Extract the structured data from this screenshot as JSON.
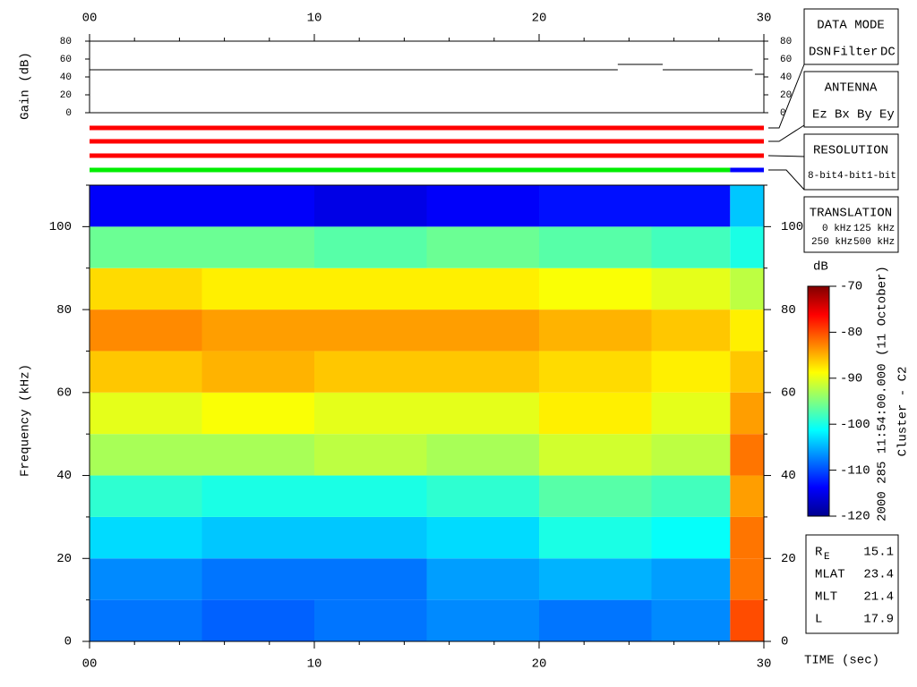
{
  "chart_data": [
    {
      "type": "line",
      "ylabel": "Gain (dB)",
      "color": "#000000",
      "x": [
        0,
        23.5,
        23.5,
        23.5,
        25.5,
        25.5,
        25.5,
        29.5,
        29.5,
        29.6,
        30
      ],
      "values": [
        48,
        48,
        null,
        54,
        54,
        null,
        48,
        48,
        null,
        43,
        43
      ],
      "xlim": [
        0,
        30
      ],
      "xticks": [
        {
          "value": 0,
          "label": "00"
        },
        10,
        20,
        30
      ],
      "ylim": [
        0,
        80
      ],
      "yticks": [
        0,
        20,
        40,
        60,
        80
      ]
    },
    {
      "type": "segments",
      "rows": [
        {
          "segments": [
            {
              "start": 0,
              "end": 30,
              "color": "#ff0000"
            }
          ]
        },
        {
          "segments": [
            {
              "start": 0,
              "end": 30,
              "color": "#ff0000"
            }
          ]
        },
        {
          "segments": [
            {
              "start": 0,
              "end": 30,
              "color": "#ff0000"
            }
          ]
        },
        {
          "segments": [
            {
              "start": 0,
              "end": 28.5,
              "color": "#00ee00"
            },
            {
              "start": 28.5,
              "end": 30,
              "color": "#0000ff"
            }
          ]
        }
      ]
    },
    {
      "type": "heatmap",
      "xlabel": "TIME (sec)",
      "ylabel": "Frequency (kHz)",
      "xbins": [
        0,
        5,
        10,
        15,
        20,
        25,
        28.5,
        30
      ],
      "ybins": [
        0,
        10,
        20,
        30,
        40,
        50,
        60,
        70,
        80,
        90,
        100,
        110
      ],
      "values": [
        [
          -108,
          -109,
          -108,
          -107,
          -108,
          -107,
          -80
        ],
        [
          -107,
          -108,
          -108,
          -106,
          -105,
          -106,
          -82
        ],
        [
          -103,
          -104,
          -104,
          -103,
          -100,
          -101,
          -82
        ],
        [
          -99,
          -100,
          -100,
          -99,
          -97,
          -98,
          -84
        ],
        [
          -93,
          -93,
          -92,
          -93,
          -91,
          -92,
          -82
        ],
        [
          -90,
          -89,
          -90,
          -90,
          -88,
          -90,
          -84
        ],
        [
          -86,
          -85,
          -86,
          -86,
          -87,
          -88,
          -86
        ],
        [
          -83,
          -84,
          -84,
          -84,
          -85,
          -86,
          -88
        ],
        [
          -87,
          -88,
          -88,
          -88,
          -89,
          -90,
          -92
        ],
        [
          -96,
          -96,
          -97,
          -96,
          -97,
          -98,
          -100
        ],
        [
          -114,
          -114,
          -115,
          -114,
          -113,
          -113,
          -104
        ]
      ],
      "xlim": [
        0,
        30
      ],
      "xticks": [
        {
          "value": 0,
          "label": "00"
        },
        10,
        20,
        30
      ],
      "xminorticks": [
        2,
        4,
        6,
        8,
        12,
        14,
        16,
        18,
        22,
        24,
        26,
        28
      ],
      "ylim": [
        0,
        110
      ],
      "yticks": [
        0,
        20,
        40,
        60,
        80,
        100
      ],
      "yminorticks": [
        10,
        30,
        50,
        70,
        90,
        110
      ],
      "colorbar": {
        "label": "dB",
        "lim": [
          -120,
          -70
        ],
        "ticks": [
          -70,
          -80,
          -90,
          -100,
          -110,
          -120
        ]
      }
    }
  ],
  "side_panel": {
    "data_mode": {
      "title": "DATA MODE",
      "items": [
        {
          "text": "DSN",
          "color": "#ff0000"
        },
        {
          "text": "Filter",
          "color": "#00cc00"
        },
        {
          "text": "DC",
          "color": "#0000ff"
        }
      ]
    },
    "antenna": {
      "title": "ANTENNA",
      "items": [
        {
          "text": "Ez",
          "color": "#ff0000"
        },
        {
          "text": "Bx",
          "color": "#00cc00"
        },
        {
          "text": "By",
          "color": "#0000ff"
        },
        {
          "text": "Ey",
          "color": "#000000"
        }
      ]
    },
    "resolution": {
      "title": "RESOLUTION",
      "items": [
        {
          "text": "8-bit",
          "color": "#ff0000"
        },
        {
          "text": "4-bit",
          "color": "#00cc00"
        },
        {
          "text": "1-bit",
          "color": "#0000ff"
        }
      ]
    },
    "translation": {
      "title": "TRANSLATION",
      "items": [
        {
          "text": "0 kHz",
          "color": "#ff0000"
        },
        {
          "text": "125 kHz",
          "color": "#00cc00"
        },
        {
          "text": "250 kHz",
          "color": "#0000ff"
        },
        {
          "text": "500 kHz",
          "color": "#000000"
        }
      ]
    },
    "timestamp": "2000 285 11:54:00.000 (11 October)",
    "spacecraft": "Cluster - C2",
    "info": [
      {
        "label": "R",
        "sub": "E",
        "value": 15.1
      },
      {
        "label": "MLAT",
        "value": 23.4
      },
      {
        "label": "MLT",
        "value": 21.4
      },
      {
        "label": "L",
        "value": 17.9
      }
    ]
  }
}
